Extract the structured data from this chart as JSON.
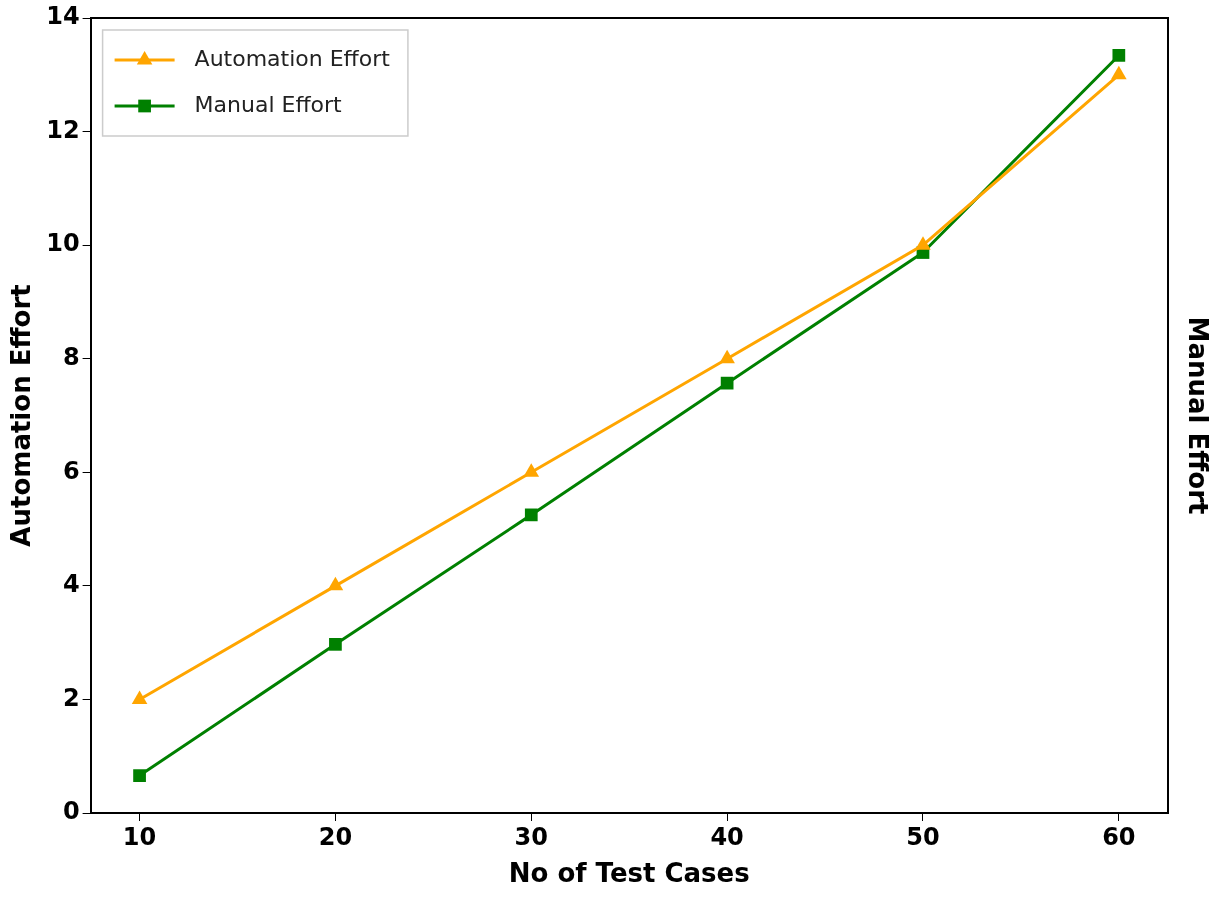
{
  "chart_data": {
    "type": "line",
    "xlabel": "No of Test Cases",
    "ylabel": "Automation Effort",
    "y2label": "Manual Effort",
    "x": [
      10,
      20,
      30,
      40,
      50,
      60
    ],
    "series": [
      {
        "name": "Automation Effort",
        "color": "#ffa500",
        "marker": "triangle",
        "values": [
          2,
          4,
          6,
          8,
          10,
          13
        ]
      },
      {
        "name": "Manual Effort",
        "color": "#008000",
        "marker": "square",
        "values": [
          0.66,
          2.97,
          5.25,
          7.57,
          9.87,
          13.34
        ]
      }
    ],
    "xlim": [
      7.5,
      62.5
    ],
    "xticks": [
      10,
      20,
      30,
      40,
      50,
      60
    ],
    "ylim": [
      0,
      14
    ],
    "yticks": [
      0,
      2,
      4,
      6,
      8,
      10,
      12,
      14
    ],
    "grid": false,
    "legend": "top left",
    "line_style": "solid"
  }
}
